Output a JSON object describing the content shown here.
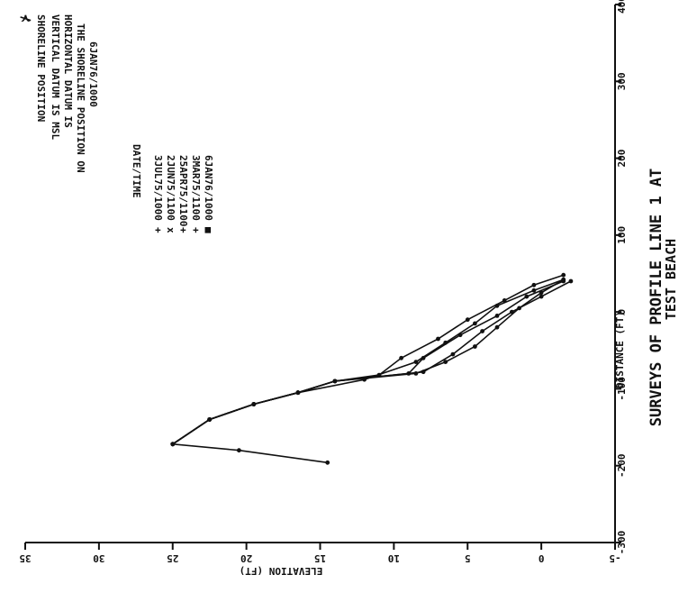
{
  "chart_data": {
    "type": "line",
    "title": "SURVEYS OF PROFILE LINE 1 AT",
    "subtitle": "TEST BEACH",
    "xlabel": "DISTANCE (FT)",
    "ylabel": "ELEVATION (FT)",
    "xlim": [
      -300,
      400
    ],
    "ylim": [
      -5,
      35
    ],
    "x_ticks": [
      "-300",
      "-200",
      "-100",
      "0",
      "100",
      "200",
      "300",
      "400"
    ],
    "y_ticks": [
      "35",
      "30",
      "25",
      "20",
      "15",
      "10",
      "5",
      "0",
      "-5"
    ],
    "notes": [
      "SHORELINE POSITION",
      "VERTICAL DATUM IS MSL",
      "HORIZONTAL DATUM IS",
      "THE SHORELINE POSITION ON",
      "6JAN76/1000"
    ],
    "legend_title": "DATE/TIME",
    "legend_symbols": [
      "+",
      "x",
      "+",
      "+",
      "■"
    ],
    "series": [
      {
        "name": "3JUL75/1000",
        "points": [
          [
            -172,
            25.0
          ],
          [
            -140,
            22.5
          ],
          [
            -120,
            19.5
          ],
          [
            -105,
            16.5
          ],
          [
            -90,
            14.0
          ],
          [
            -82,
            11.0
          ],
          [
            -60,
            9.5
          ],
          [
            -35,
            7.0
          ],
          [
            -10,
            5.0
          ],
          [
            15,
            2.5
          ],
          [
            35,
            0.5
          ],
          [
            48,
            -1.5
          ]
        ]
      },
      {
        "name": "2JUN75/1100",
        "points": [
          [
            -172,
            25.0
          ],
          [
            -140,
            22.5
          ],
          [
            -120,
            19.5
          ],
          [
            -105,
            16.5
          ],
          [
            -90,
            14.0
          ],
          [
            -80,
            9.0
          ],
          [
            -60,
            8.0
          ],
          [
            -30,
            5.5
          ],
          [
            -5,
            3.0
          ],
          [
            20,
            1.0
          ],
          [
            40,
            -1.5
          ]
        ]
      },
      {
        "name": "25APR75/1100",
        "points": [
          [
            -172,
            25.0
          ],
          [
            -140,
            22.5
          ],
          [
            -120,
            19.5
          ],
          [
            -105,
            16.5
          ],
          [
            -88,
            12.0
          ],
          [
            -65,
            8.5
          ],
          [
            -40,
            6.5
          ],
          [
            -15,
            4.5
          ],
          [
            8,
            3.0
          ],
          [
            28,
            0.5
          ],
          [
            42,
            -1.5
          ]
        ]
      },
      {
        "name": "3MAR75/1100",
        "points": [
          [
            -172,
            25.0
          ],
          [
            -140,
            22.5
          ],
          [
            -120,
            19.5
          ],
          [
            -105,
            16.5
          ],
          [
            -90,
            14.0
          ],
          [
            -78,
            8.0
          ],
          [
            -55,
            6.0
          ],
          [
            -25,
            4.0
          ],
          [
            0,
            2.0
          ],
          [
            20,
            0.0
          ],
          [
            40,
            -2.0
          ]
        ]
      },
      {
        "name": "6JAN76/1000",
        "points": [
          [
            -196,
            14.5
          ],
          [
            -180,
            20.5
          ],
          [
            -172,
            25.0
          ],
          [
            -140,
            22.5
          ],
          [
            -120,
            19.5
          ],
          [
            -105,
            16.5
          ],
          [
            -90,
            14.0
          ],
          [
            -80,
            8.5
          ],
          [
            -65,
            6.5
          ],
          [
            -45,
            4.5
          ],
          [
            -20,
            3.0
          ],
          [
            5,
            1.5
          ],
          [
            25,
            0.0
          ],
          [
            42,
            -1.5
          ]
        ]
      }
    ]
  }
}
